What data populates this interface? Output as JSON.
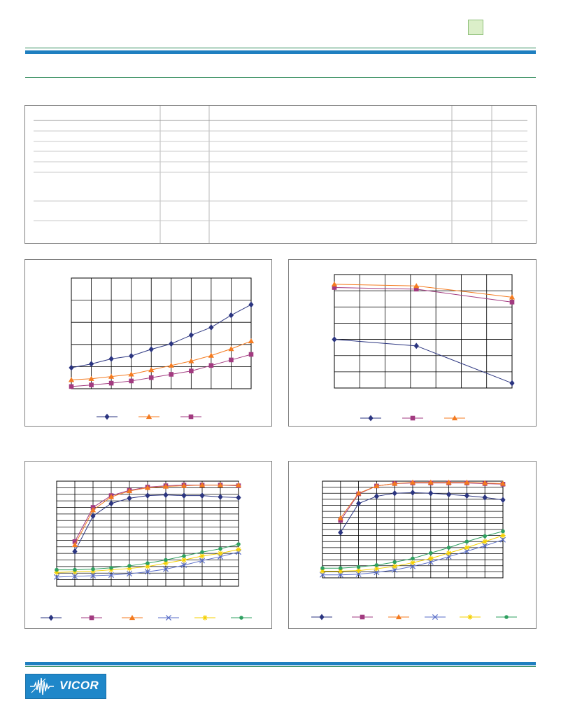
{
  "header": {
    "badge_color": "#dbefc9",
    "rule_color": "#1f7fc0",
    "accent_line_color": "#2f8a5a"
  },
  "footer": {
    "logo_text": "VICOR",
    "logo_icon": "vicor-wave-icon"
  },
  "table": {
    "columns": 5,
    "rows": 8
  },
  "chart_data": [
    {
      "type": "line",
      "grid": true,
      "legend": "bottom",
      "x": [
        0,
        1,
        2,
        3,
        4,
        5,
        6,
        7,
        8,
        9
      ],
      "ylim": [
        0,
        5
      ],
      "series": [
        {
          "marker": "diamond",
          "color": "#2b3580",
          "values": [
            0.95,
            1.12,
            1.35,
            1.48,
            1.78,
            2.03,
            2.42,
            2.77,
            3.32,
            3.8
          ]
        },
        {
          "marker": "triangle",
          "color": "#f47b20",
          "values": [
            0.4,
            0.45,
            0.55,
            0.65,
            0.85,
            1.05,
            1.25,
            1.5,
            1.8,
            2.15
          ]
        },
        {
          "marker": "square",
          "color": "#a23a80",
          "values": [
            0.1,
            0.17,
            0.25,
            0.35,
            0.5,
            0.65,
            0.8,
            1.05,
            1.3,
            1.55
          ]
        }
      ]
    },
    {
      "type": "line",
      "grid": true,
      "legend": "bottom",
      "x": [
        0,
        3,
        6.5
      ],
      "ylim": [
        0,
        7
      ],
      "series": [
        {
          "marker": "diamond",
          "color": "#2b3580",
          "values": [
            3.0,
            2.6,
            0.3
          ]
        },
        {
          "marker": "square",
          "color": "#a23a80",
          "values": [
            6.2,
            6.1,
            5.3
          ]
        },
        {
          "marker": "triangle",
          "color": "#f47b20",
          "values": [
            6.4,
            6.3,
            5.6
          ]
        }
      ]
    },
    {
      "type": "line",
      "grid": true,
      "legend": "bottom",
      "x": [
        0,
        1,
        2,
        3,
        4,
        5,
        6,
        7,
        8,
        9,
        10
      ],
      "ylim": [
        0,
        16
      ],
      "series": [
        {
          "marker": "diamond",
          "color": "#2b3580",
          "values": [
            null,
            5.3,
            10.7,
            12.6,
            13.4,
            13.8,
            13.9,
            13.8,
            13.8,
            13.6,
            13.5
          ]
        },
        {
          "marker": "square",
          "color": "#a23a80",
          "values": [
            null,
            6.8,
            12.0,
            13.8,
            14.6,
            15.1,
            15.3,
            15.4,
            15.4,
            15.4,
            15.3
          ]
        },
        {
          "marker": "triangle",
          "color": "#f47b20",
          "values": [
            null,
            6.3,
            11.6,
            13.6,
            14.5,
            15.0,
            15.2,
            15.3,
            15.4,
            15.4,
            15.4
          ]
        },
        {
          "marker": "x",
          "color": "#5a6ec8",
          "values": [
            1.4,
            1.5,
            1.6,
            1.7,
            1.9,
            2.2,
            2.6,
            3.2,
            3.9,
            4.5,
            5.2
          ]
        },
        {
          "marker": "star",
          "color": "#f5d000",
          "values": [
            2.1,
            2.2,
            2.3,
            2.5,
            2.7,
            3.0,
            3.5,
            4.0,
            4.6,
            5.0,
            5.6
          ]
        },
        {
          "marker": "circle",
          "color": "#2fa060",
          "values": [
            2.5,
            2.5,
            2.6,
            2.8,
            3.1,
            3.5,
            4.0,
            4.6,
            5.2,
            5.7,
            6.4
          ]
        }
      ]
    },
    {
      "type": "line",
      "grid": true,
      "legend": "bottom",
      "x": [
        0,
        1,
        2,
        3,
        4,
        5,
        6,
        7,
        8,
        9,
        10
      ],
      "ylim": [
        0,
        16
      ],
      "series": [
        {
          "marker": "diamond",
          "color": "#2b3580",
          "values": [
            null,
            7.5,
            12.3,
            13.5,
            14.0,
            14.1,
            14.0,
            13.8,
            13.6,
            13.3,
            12.9
          ]
        },
        {
          "marker": "square",
          "color": "#a23a80",
          "values": [
            null,
            9.5,
            13.9,
            15.2,
            15.6,
            15.7,
            15.7,
            15.7,
            15.7,
            15.6,
            15.5
          ]
        },
        {
          "marker": "triangle",
          "color": "#f47b20",
          "values": [
            null,
            9.9,
            14.0,
            15.2,
            15.6,
            15.8,
            15.8,
            15.8,
            15.8,
            15.7,
            15.6
          ]
        },
        {
          "marker": "x",
          "color": "#5a6ec8",
          "values": [
            0.5,
            0.5,
            0.6,
            0.9,
            1.3,
            1.9,
            2.6,
            3.5,
            4.4,
            5.3,
            6.3
          ]
        },
        {
          "marker": "star",
          "color": "#f5d000",
          "values": [
            1.1,
            1.1,
            1.2,
            1.5,
            1.9,
            2.5,
            3.2,
            4.1,
            5.0,
            6.0,
            7.0
          ]
        },
        {
          "marker": "circle",
          "color": "#2fa060",
          "values": [
            1.6,
            1.6,
            1.8,
            2.1,
            2.6,
            3.2,
            4.1,
            5.0,
            6.0,
            6.9,
            7.7
          ]
        }
      ]
    }
  ]
}
